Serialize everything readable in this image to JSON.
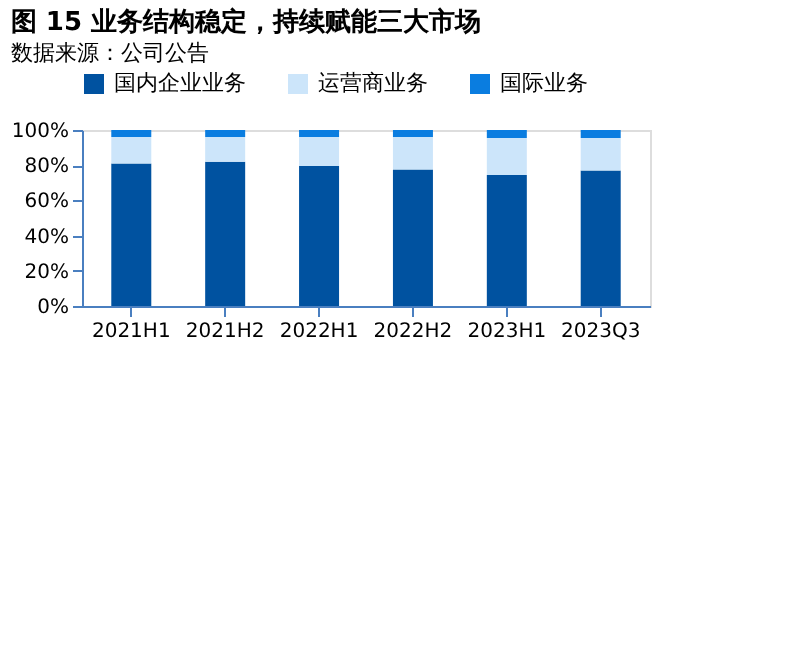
{
  "chart_data": {
    "type": "bar",
    "stacked": true,
    "title": "图 15 业务结构稳定，持续赋能三大市场",
    "categories": [
      "2021H1",
      "2021H2",
      "2022H1",
      "2022H2",
      "2023H1",
      "2023Q3"
    ],
    "series": [
      {
        "name": "国内企业业务",
        "color": "#0052a0",
        "values": [
          81,
          82,
          79.5,
          77.5,
          74.5,
          77
        ]
      },
      {
        "name": "运营商业务",
        "color": "#cce5fa",
        "values": [
          15,
          14,
          16.5,
          18.5,
          21,
          18.5
        ]
      },
      {
        "name": "国际业务",
        "color": "#0a7de0",
        "values": [
          4,
          4,
          4,
          4,
          4.5,
          4.5
        ]
      }
    ],
    "ylim": [
      0,
      100
    ],
    "yticks": [
      {
        "value": 0,
        "label": "0%"
      },
      {
        "value": 20,
        "label": "20%"
      },
      {
        "value": 40,
        "label": "40%"
      },
      {
        "value": 60,
        "label": "60%"
      },
      {
        "value": 80,
        "label": "80%"
      },
      {
        "value": 100,
        "label": "100%"
      }
    ],
    "grid": false,
    "legend": "top",
    "annotations": [
      "数据来源：公司公告"
    ]
  }
}
